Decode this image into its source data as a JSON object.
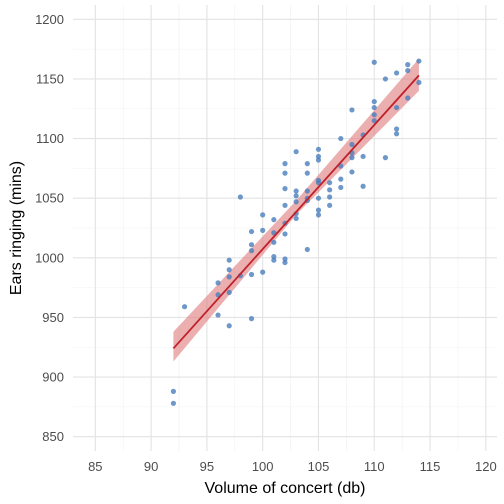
{
  "chart_data": {
    "type": "scatter",
    "xlabel": "Volume of concert (db)",
    "ylabel": "Ears ringing (mins)",
    "xlim": [
      83,
      121
    ],
    "ylim": [
      838,
      1212
    ],
    "x_ticks": [
      85,
      90,
      95,
      100,
      105,
      110,
      115,
      120
    ],
    "y_ticks": [
      850,
      900,
      950,
      1000,
      1050,
      1100,
      1150,
      1200
    ],
    "grid": true,
    "legend": "none",
    "point_color": "#4a7ebb",
    "fit_color": "#c0202a",
    "band_color": "#e07a7a",
    "points": [
      {
        "x": 92,
        "y": 888
      },
      {
        "x": 92,
        "y": 878
      },
      {
        "x": 93,
        "y": 959
      },
      {
        "x": 96,
        "y": 979
      },
      {
        "x": 96,
        "y": 952
      },
      {
        "x": 96,
        "y": 969
      },
      {
        "x": 97,
        "y": 998
      },
      {
        "x": 97,
        "y": 990
      },
      {
        "x": 97,
        "y": 984
      },
      {
        "x": 97,
        "y": 971
      },
      {
        "x": 97,
        "y": 943
      },
      {
        "x": 98,
        "y": 1051
      },
      {
        "x": 98,
        "y": 985
      },
      {
        "x": 99,
        "y": 1022
      },
      {
        "x": 99,
        "y": 1011
      },
      {
        "x": 99,
        "y": 1006
      },
      {
        "x": 99,
        "y": 986
      },
      {
        "x": 99,
        "y": 949
      },
      {
        "x": 100,
        "y": 1036
      },
      {
        "x": 100,
        "y": 1023
      },
      {
        "x": 100,
        "y": 988
      },
      {
        "x": 101,
        "y": 1032
      },
      {
        "x": 101,
        "y": 1021
      },
      {
        "x": 101,
        "y": 1013
      },
      {
        "x": 101,
        "y": 1001
      },
      {
        "x": 101,
        "y": 998
      },
      {
        "x": 102,
        "y": 1079
      },
      {
        "x": 102,
        "y": 1071
      },
      {
        "x": 102,
        "y": 1058
      },
      {
        "x": 102,
        "y": 1044
      },
      {
        "x": 102,
        "y": 1029
      },
      {
        "x": 102,
        "y": 1020
      },
      {
        "x": 102,
        "y": 999
      },
      {
        "x": 102,
        "y": 996
      },
      {
        "x": 103,
        "y": 1089
      },
      {
        "x": 103,
        "y": 1056
      },
      {
        "x": 103,
        "y": 1052
      },
      {
        "x": 103,
        "y": 1047
      },
      {
        "x": 103,
        "y": 1037
      },
      {
        "x": 103,
        "y": 1033
      },
      {
        "x": 104,
        "y": 1079
      },
      {
        "x": 104,
        "y": 1071
      },
      {
        "x": 104,
        "y": 1056
      },
      {
        "x": 104,
        "y": 1050
      },
      {
        "x": 104,
        "y": 1048
      },
      {
        "x": 104,
        "y": 1007
      },
      {
        "x": 105,
        "y": 1091
      },
      {
        "x": 105,
        "y": 1085
      },
      {
        "x": 105,
        "y": 1082
      },
      {
        "x": 105,
        "y": 1065
      },
      {
        "x": 105,
        "y": 1063
      },
      {
        "x": 105,
        "y": 1050
      },
      {
        "x": 105,
        "y": 1040
      },
      {
        "x": 105,
        "y": 1036
      },
      {
        "x": 106,
        "y": 1063
      },
      {
        "x": 106,
        "y": 1057
      },
      {
        "x": 106,
        "y": 1051
      },
      {
        "x": 106,
        "y": 1044
      },
      {
        "x": 107,
        "y": 1100
      },
      {
        "x": 107,
        "y": 1077
      },
      {
        "x": 107,
        "y": 1066
      },
      {
        "x": 107,
        "y": 1059
      },
      {
        "x": 108,
        "y": 1124
      },
      {
        "x": 108,
        "y": 1095
      },
      {
        "x": 108,
        "y": 1088
      },
      {
        "x": 108,
        "y": 1084
      },
      {
        "x": 108,
        "y": 1072
      },
      {
        "x": 109,
        "y": 1103
      },
      {
        "x": 109,
        "y": 1085
      },
      {
        "x": 109,
        "y": 1060
      },
      {
        "x": 110,
        "y": 1164
      },
      {
        "x": 110,
        "y": 1131
      },
      {
        "x": 110,
        "y": 1126
      },
      {
        "x": 110,
        "y": 1120
      },
      {
        "x": 110,
        "y": 1115
      },
      {
        "x": 111,
        "y": 1150
      },
      {
        "x": 111,
        "y": 1084
      },
      {
        "x": 112,
        "y": 1155
      },
      {
        "x": 112,
        "y": 1126
      },
      {
        "x": 112,
        "y": 1108
      },
      {
        "x": 112,
        "y": 1104
      },
      {
        "x": 113,
        "y": 1162
      },
      {
        "x": 113,
        "y": 1157
      },
      {
        "x": 113,
        "y": 1134
      },
      {
        "x": 114,
        "y": 1165
      },
      {
        "x": 114,
        "y": 1147
      }
    ],
    "fit_line": {
      "x_start": 92,
      "y_start": 924,
      "x_end": 114,
      "y_end": 1153
    },
    "confidence_band": {
      "x": [
        92,
        103,
        114
      ],
      "lower": [
        913,
        1036,
        1140
      ],
      "upper": [
        938,
        1048,
        1167
      ]
    }
  }
}
